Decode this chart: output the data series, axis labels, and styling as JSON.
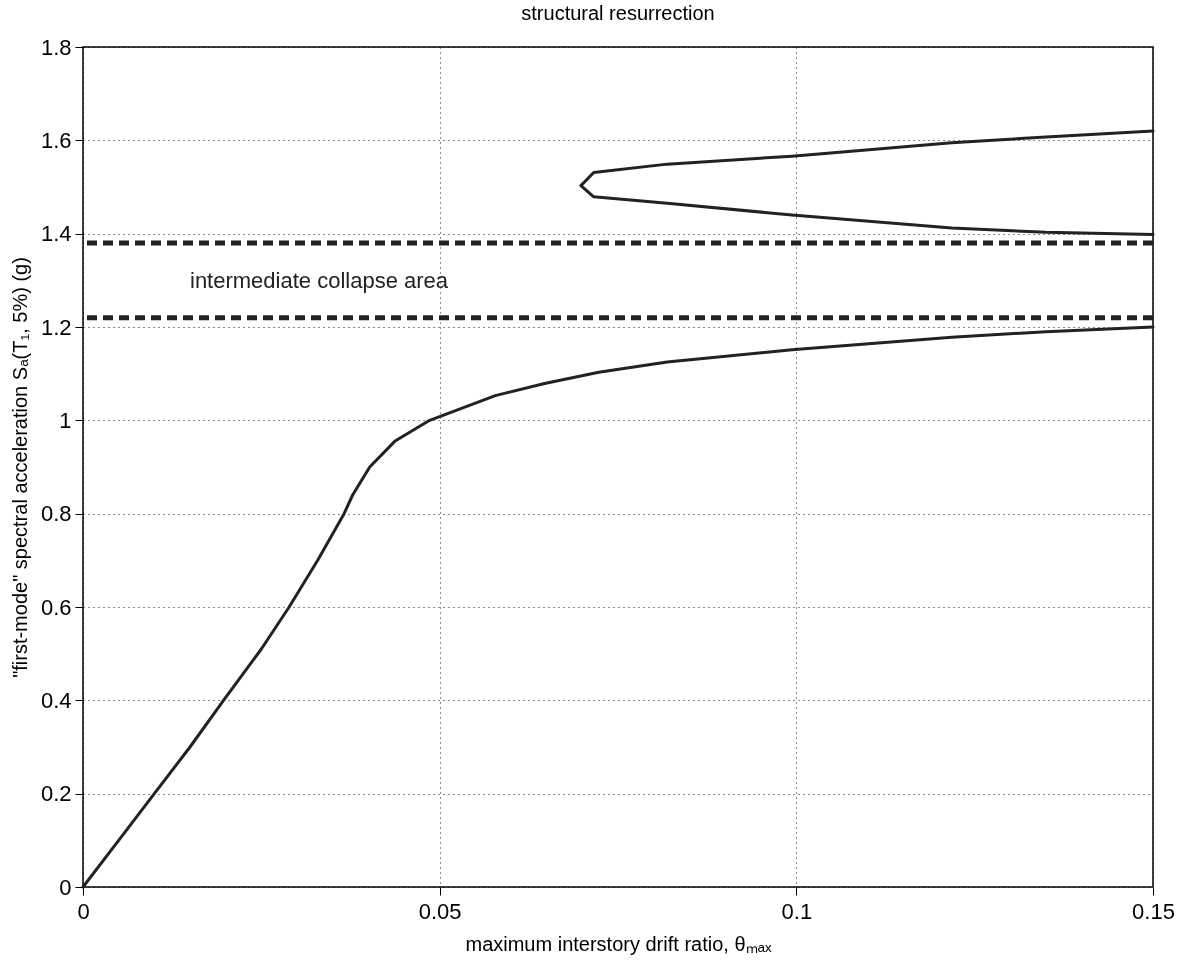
{
  "chart_data": {
    "type": "line",
    "title": "structural resurrection",
    "xlabel": "maximum interstory drift ratio, θₘₐₓ",
    "ylabel": "\"first-mode\" spectral acceleration Sₐ(T₁, 5%)  (g)",
    "xlim": [
      0,
      0.15
    ],
    "xticks": [
      0,
      0.05,
      0.1,
      0.15
    ],
    "ylim": [
      0,
      1.8
    ],
    "yticks": [
      0,
      0.2,
      0.4,
      0.6,
      0.8,
      1,
      1.2,
      1.4,
      1.6,
      1.8
    ],
    "grid": true,
    "marker": "none",
    "line_style": "solid",
    "series": [
      {
        "color": "#222222",
        "x": [
          0,
          0.005,
          0.01,
          0.015,
          0.0197,
          0.025,
          0.0289,
          0.0329,
          0.0366,
          0.0378,
          0.0402,
          0.0437,
          0.0486,
          0.0578,
          0.0647,
          0.0723,
          0.0819,
          0.0994,
          0.1218,
          0.135,
          0.15
        ],
        "values": [
          0,
          0.1,
          0.2,
          0.3,
          0.4,
          0.51,
          0.6,
          0.7,
          0.8,
          0.84,
          0.9,
          0.955,
          1,
          1.053,
          1.079,
          1.103,
          1.125,
          1.151,
          1.178,
          1.19,
          1.2
        ]
      },
      {
        "color": "#222222",
        "x": [
          0.15,
          0.135,
          0.1218,
          0.0994,
          0.0819,
          0.0716,
          0.0698,
          0.0716,
          0.0819,
          0.0994,
          0.1218,
          0.135,
          0.15
        ],
        "values": [
          1.62,
          1.607,
          1.595,
          1.566,
          1.549,
          1.531,
          1.503,
          1.479,
          1.465,
          1.44,
          1.412,
          1.403,
          1.398
        ]
      }
    ],
    "ref_lines": [
      {
        "axis": "y",
        "value": 1.38,
        "line_style": "dashed",
        "color": "#222222"
      },
      {
        "axis": "y",
        "value": 1.22,
        "line_style": "dashed",
        "color": "#222222"
      }
    ],
    "annotations": [
      "intermediate collapse area"
    ]
  }
}
